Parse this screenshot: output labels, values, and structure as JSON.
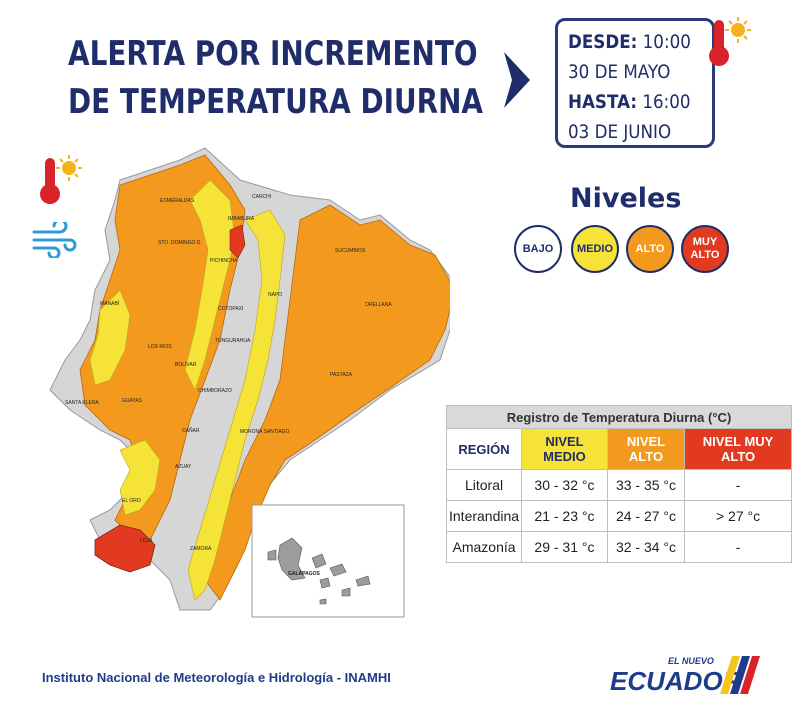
{
  "title": {
    "line1_regular": "ALERTA POR ",
    "line1_bold": "INCREMENTO",
    "line2": "DE TEMPERATURA DIURNA"
  },
  "dates": {
    "desde_label": "DESDE:",
    "desde_time": "10:00",
    "desde_date": "30 DE MAYO",
    "hasta_label": "HASTA:",
    "hasta_time": "16:00",
    "hasta_date": "03 DE  JUNIO"
  },
  "levels": {
    "title": "Niveles",
    "items": [
      {
        "label": "BAJO",
        "color": "#ffffff",
        "text_color": "#1f2d6b"
      },
      {
        "label": "MEDIO",
        "color": "#f6e337",
        "text_color": "#1f2d6b"
      },
      {
        "label": "ALTO",
        "color": "#f39a1e",
        "text_color": "#ffffff"
      },
      {
        "label": "MUY ALTO",
        "color": "#e13a20",
        "text_color": "#ffffff"
      }
    ]
  },
  "map": {
    "provinces": [
      "ESMERALDAS",
      "CARCHI",
      "IMBABURA",
      "SUCUMBIOS",
      "PICHINCHA",
      "STO. DOMINGO D.",
      "MANABÍ",
      "NAPO",
      "ORELLANA",
      "COTOPAXI",
      "LOS RÍOS",
      "TUNGURAHUA",
      "BOLÍVAR",
      "PASTAZA",
      "SANTA ELENA",
      "CHIMBORAZO",
      "GUAYAS",
      "CAÑAR",
      "MORONA SANTIAGO",
      "AZUAY",
      "EL ORO",
      "LOJA",
      "ZAMORA",
      "GALÁPAGOS"
    ],
    "colors": {
      "medio": "#f6e337",
      "alto": "#f39a1e",
      "muy_alto": "#e13a20",
      "gris": "#d6d6d6"
    }
  },
  "table": {
    "caption": "Registro de Temperatura Diurna (°C)",
    "headers": [
      "REGIÓN",
      "NIVEL MEDIO",
      "NIVEL ALTO",
      "NIVEL MUY ALTO"
    ],
    "header_colors": [
      "#ffffff",
      "#f6e337",
      "#f39a1e",
      "#e13a20"
    ],
    "rows": [
      {
        "region": "Litoral",
        "medio": "30 - 32 °c",
        "alto": "33 - 35 °c",
        "muy_alto": "-"
      },
      {
        "region": "Interandina",
        "medio": "21 - 23 °c",
        "alto": "24 - 27 °c",
        "muy_alto": "> 27 °c"
      },
      {
        "region": "Amazonía",
        "medio": "29 - 31 °c",
        "alto": "32 - 34 °c",
        "muy_alto": "-"
      }
    ]
  },
  "footer": "Instituto Nacional de Meteorología e Hidrología - INAMHI",
  "logo": {
    "top": "EL NUEVO",
    "main": "ECUADOR"
  }
}
